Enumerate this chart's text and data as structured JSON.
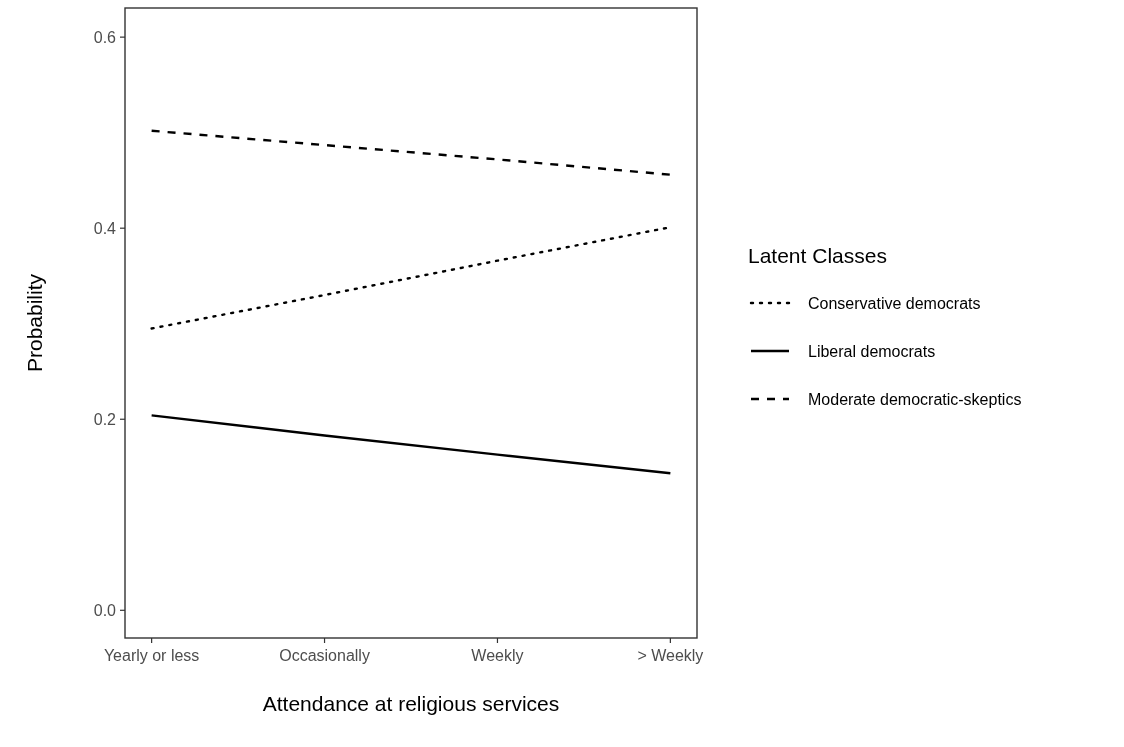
{
  "chart_data": {
    "type": "line",
    "xlabel": "Attendance at religious services",
    "ylabel": "Probability",
    "legend_title": "Latent Classes",
    "categories": [
      "Yearly or less",
      "Occasionally",
      "Weekly",
      "> Weekly"
    ],
    "series": [
      {
        "name": "Conservative democrats",
        "color": "#000000",
        "line_style": "dotted",
        "values": [
          0.295,
          0.33,
          0.366,
          0.401
        ]
      },
      {
        "name": "Liberal democrats",
        "color": "#000000",
        "line_style": "solid",
        "values": [
          0.204,
          0.183,
          0.163,
          0.1435
        ]
      },
      {
        "name": "Moderate democratic-skeptics",
        "color": "#000000",
        "line_style": "dashed",
        "values": [
          0.502,
          0.487,
          0.472,
          0.456
        ]
      }
    ],
    "ylim": [
      -0.029,
      0.6305
    ],
    "yticks": [
      {
        "value": 0,
        "label": "0.0"
      },
      {
        "value": 0.2,
        "label": "0.2"
      },
      {
        "value": 0.4,
        "label": "0.4"
      },
      {
        "value": 0.6,
        "label": "0.6"
      }
    ],
    "grid": false,
    "legend": "right",
    "marker": "none"
  }
}
